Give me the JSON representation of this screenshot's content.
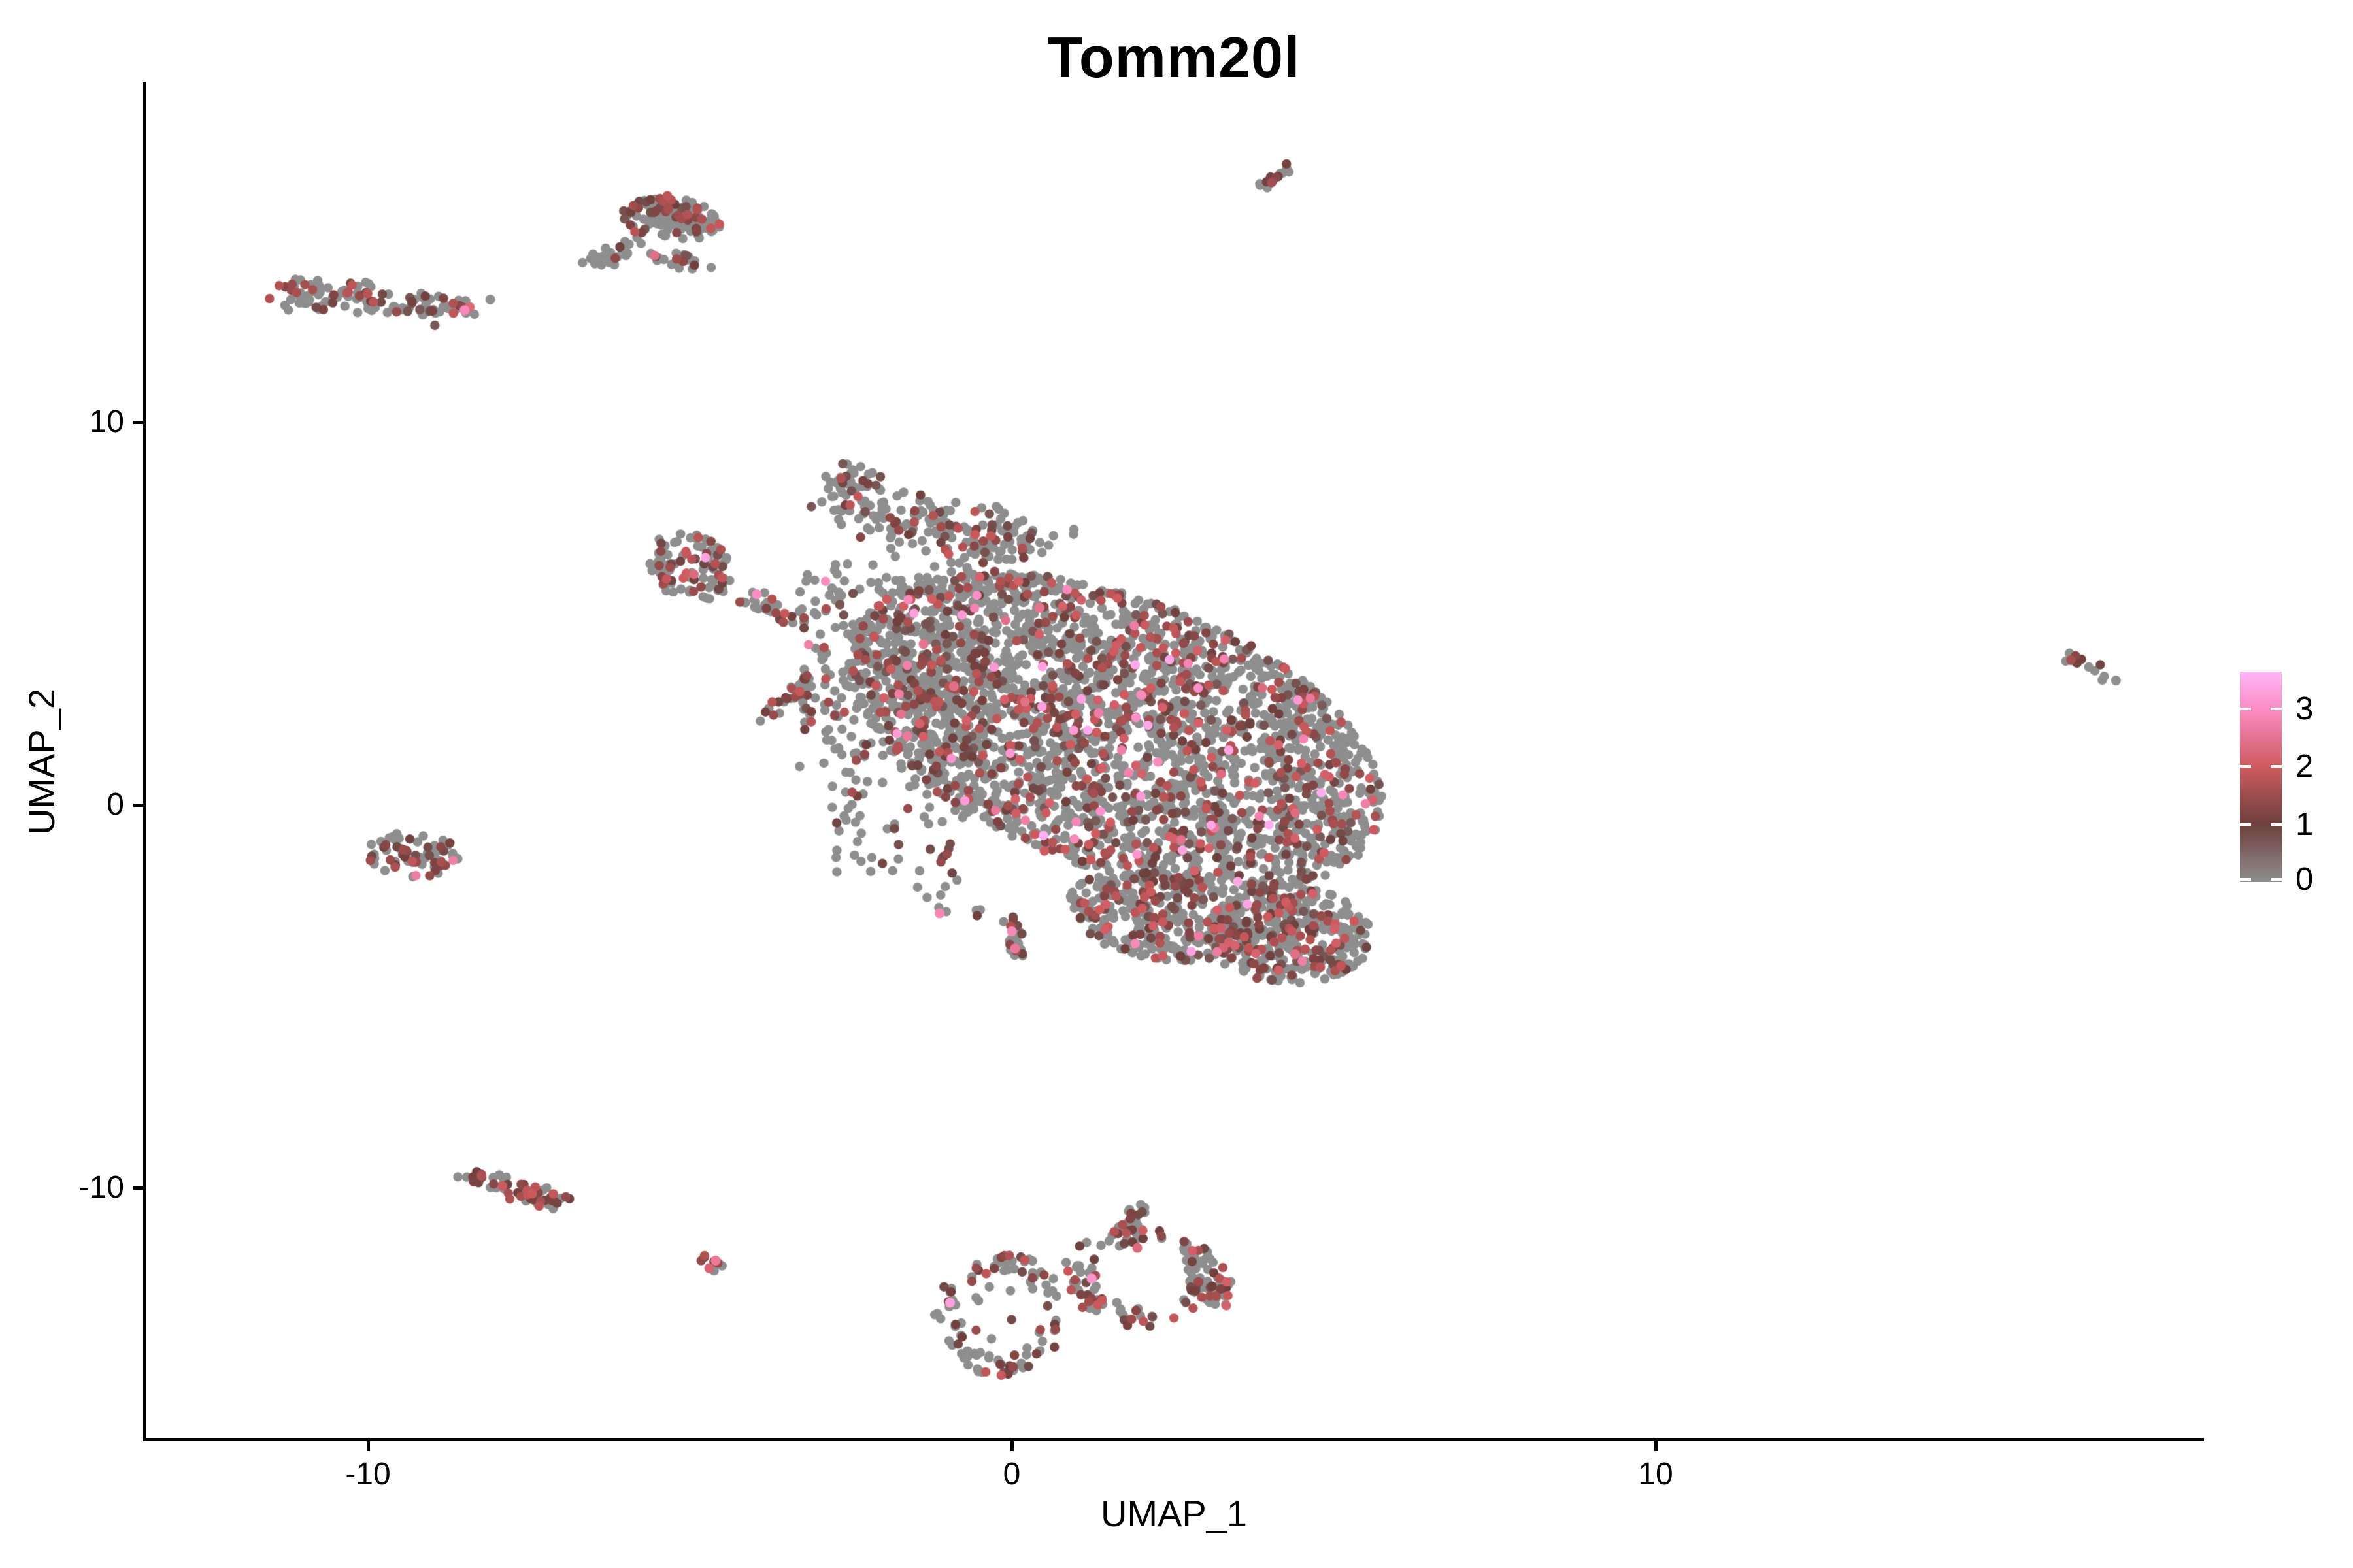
{
  "title": "Tomm20l",
  "chart_data": {
    "type": "scatter",
    "subtype": "umap-feature-expression-plot",
    "title": "Tomm20l",
    "xlabel": "UMAP_1",
    "ylabel": "UMAP_2",
    "x_ticks": {
      "values": [
        -10,
        0,
        10
      ],
      "labels": [
        "-10",
        "0",
        "10"
      ]
    },
    "y_ticks": {
      "values": [
        10,
        0,
        -10
      ],
      "labels": [
        "10",
        "0",
        "-10"
      ]
    },
    "x_range": [
      -13.5,
      18.5
    ],
    "y_range": [
      -16.6,
      18.8
    ],
    "grid": false,
    "legend": {
      "position": "right",
      "tick_values": [
        0,
        1,
        2,
        3
      ],
      "tick_labels": [
        "0",
        "1",
        "2",
        "3"
      ],
      "max_value": 3.64,
      "min_value": 0
    },
    "color_scale": {
      "stops": [
        {
          "v": 0.0,
          "c": "#8E8E8E"
        },
        {
          "v": 1.0,
          "c": "#6E403E"
        },
        {
          "v": 2.0,
          "c": "#CE5A5E"
        },
        {
          "v": 3.0,
          "c": "#FC8EC4"
        },
        {
          "v": 3.64,
          "c": "#FFB5F9"
        }
      ],
      "zero_color": "#8E8E8E"
    },
    "point_count_approx": 4950,
    "point_radius_px": 7.2,
    "seed": 20,
    "clusters": [
      {
        "name": "left-band",
        "shape": "streak",
        "x1": -11.35,
        "y1": 13.45,
        "x2": -8.45,
        "y2": 12.9,
        "w": 0.4,
        "n": 125,
        "bias": 1.3,
        "ef": 0.32,
        "lo": 0.7,
        "hi": 1.9,
        "hot": 0.005
      },
      {
        "name": "topleft-island-core",
        "shape": "ellipse",
        "cx": -5.3,
        "cy": 15.3,
        "rx": 0.8,
        "ry": 0.6,
        "rot": -15,
        "n": 95,
        "ef": 0.22,
        "lo": 0.7,
        "hi": 1.9,
        "hot": 0
      },
      {
        "name": "topleft-island-ridge",
        "shape": "streak",
        "x1": -5.8,
        "y1": 15.65,
        "x2": -4.55,
        "y2": 15.1,
        "w": 0.25,
        "n": 55,
        "ef": 0.33,
        "lo": 0.8,
        "hi": 2.0,
        "hot": 0
      },
      {
        "name": "topleft-island-tail",
        "shape": "streak",
        "x1": -5.9,
        "y1": 14.7,
        "x2": -6.6,
        "y2": 14.05,
        "w": 0.22,
        "n": 26,
        "ef": 0.15,
        "lo": 0.7,
        "hi": 1.5,
        "hot": 0
      },
      {
        "name": "topleft-island-foot",
        "shape": "streak",
        "x1": -5.55,
        "y1": 14.5,
        "x2": -4.85,
        "y2": 13.95,
        "w": 0.3,
        "n": 22,
        "ef": 0.15,
        "lo": 0.7,
        "hi": 1.5,
        "hot": 0
      },
      {
        "name": "top-streak",
        "shape": "streak",
        "x1": 3.87,
        "y1": 16.1,
        "x2": 4.55,
        "y2": 16.95,
        "w": 0.1,
        "n": 14,
        "ef": 0.45,
        "lo": 1.0,
        "hi": 1.7,
        "hot": 0
      },
      {
        "name": "far-right-streak",
        "shape": "streak",
        "x1": 16.45,
        "y1": 3.9,
        "x2": 17.0,
        "y2": 3.3,
        "w": 0.14,
        "n": 14,
        "ef": 0.5,
        "lo": 0.9,
        "hi": 1.6,
        "hot": 0
      },
      {
        "name": "left-middle-blob",
        "shape": "ellipse",
        "cx": -9.3,
        "cy": -1.3,
        "rx": 0.72,
        "ry": 0.58,
        "rot": -10,
        "n": 74,
        "ef": 0.38,
        "lo": 0.8,
        "hi": 1.9,
        "hot": 0.01
      },
      {
        "name": "bottom-left-streak",
        "shape": "streak",
        "x1": -8.5,
        "y1": -9.65,
        "x2": -7.0,
        "y2": -10.35,
        "w": 0.26,
        "n": 64,
        "ef": 0.5,
        "lo": 0.9,
        "hi": 2.0,
        "hot": 0
      },
      {
        "name": "tiny-pink-cluster",
        "shape": "ellipse",
        "cx": -4.66,
        "cy": -12.0,
        "rx": 0.2,
        "ry": 0.3,
        "rot": 0,
        "n": 9,
        "ef": 0.55,
        "lo": 1.0,
        "hi": 1.8,
        "hot": 0
      },
      {
        "name": "bottom-ring-left",
        "shape": "ring",
        "cx": -0.2,
        "cy": -13.3,
        "rx": 1.0,
        "ry": 1.6,
        "thk": 0.32,
        "n": 100,
        "ef": 0.35,
        "lo": 0.8,
        "hi": 2.0,
        "hot": 0
      },
      {
        "name": "bottom-ring-left-inner",
        "shape": "ellipse",
        "cx": -0.2,
        "cy": -13.2,
        "rx": 0.55,
        "ry": 0.9,
        "rot": 0,
        "n": 7,
        "ef": 0.2,
        "lo": 0.8,
        "hi": 1.5,
        "hot": 0
      },
      {
        "name": "bottom-ring-right",
        "shape": "ring",
        "cx": 2.05,
        "cy": -12.3,
        "rx": 1.2,
        "ry": 1.4,
        "thk": 0.38,
        "n": 120,
        "ef": 0.38,
        "lo": 0.8,
        "hi": 2.1,
        "hot": 0
      },
      {
        "name": "bottom-ring-arm",
        "shape": "streak",
        "x1": 1.8,
        "y1": -11.3,
        "x2": 2.05,
        "y2": -10.45,
        "w": 0.22,
        "n": 24,
        "ef": 0.35,
        "lo": 0.8,
        "hi": 1.8,
        "hot": 0
      },
      {
        "name": "bottom-ring-bulge",
        "shape": "streak",
        "x1": 2.9,
        "y1": -12.2,
        "x2": 3.3,
        "y2": -13.0,
        "w": 0.3,
        "n": 30,
        "ef": 0.4,
        "lo": 0.9,
        "hi": 2.2,
        "hot": 0
      },
      {
        "name": "main-left-island",
        "shape": "ellipse",
        "cx": -5.0,
        "cy": 6.2,
        "rx": 0.65,
        "ry": 0.95,
        "rot": 10,
        "n": 115,
        "ef": 0.3,
        "lo": 0.8,
        "hi": 2.1,
        "hot": 0.01
      },
      {
        "name": "main-island-tail",
        "shape": "streak",
        "x1": -4.2,
        "y1": 5.5,
        "x2": -3.4,
        "y2": 4.8,
        "w": 0.25,
        "n": 30,
        "ef": 0.35,
        "lo": 0.8,
        "hi": 2.0,
        "hot": 0
      },
      {
        "name": "main-small-arm",
        "shape": "streak",
        "x1": -3.95,
        "y1": 2.1,
        "x2": -3.1,
        "y2": 3.35,
        "w": 0.17,
        "n": 26,
        "ef": 0.35,
        "lo": 0.9,
        "hi": 2.0,
        "hot": 0
      },
      {
        "name": "main-top-wedge",
        "shape": "streak",
        "x1": -2.7,
        "y1": 8.0,
        "x2": 0.45,
        "y2": 6.55,
        "w": 0.8,
        "n": 195,
        "ef": 0.25,
        "lo": 0.7,
        "hi": 2.0,
        "hot": 0.01
      },
      {
        "name": "main-wedge-tip",
        "shape": "ellipse",
        "cx": -2.55,
        "cy": 8.55,
        "rx": 0.45,
        "ry": 0.4,
        "rot": 0,
        "n": 24,
        "ef": 0.2,
        "lo": 0.7,
        "hi": 1.6,
        "hot": 0
      },
      {
        "name": "main-midleft-sparse",
        "shape": "rect",
        "x1": -3.3,
        "y1": 1.0,
        "x2": -0.4,
        "y2": 6.3,
        "n": 285,
        "ef": 0.22,
        "lo": 0.7,
        "hi": 1.9,
        "hot": 0.01
      },
      {
        "name": "main-lowleft-strip",
        "shape": "rect",
        "x1": -2.9,
        "y1": -1.8,
        "x2": -0.7,
        "y2": 1.0,
        "n": 60,
        "ef": 0.25,
        "lo": 0.7,
        "hi": 1.9,
        "hot": 0
      },
      {
        "name": "main-stragglers",
        "shape": "rect",
        "x1": -1.5,
        "y1": -2.9,
        "x2": -0.3,
        "y2": -1.8,
        "n": 10,
        "ef": 0.3,
        "lo": 0.8,
        "hi": 2.0,
        "hot": 0
      },
      {
        "name": "main-dense-core",
        "shape": "ellipse",
        "cx": 1.6,
        "cy": 1.9,
        "rx": 5.0,
        "ry": 3.1,
        "rot": -45,
        "n": 2750,
        "ef": 0.27,
        "lo": 0.65,
        "hi": 2.15,
        "hot": 0.02
      },
      {
        "name": "main-bottom-bridge",
        "shape": "ellipse",
        "cx": 2.3,
        "cy": -2.9,
        "rx": 1.5,
        "ry": 1.1,
        "rot": -25,
        "n": 330,
        "ef": 0.3,
        "lo": 0.7,
        "hi": 2.1,
        "hot": 0.01
      },
      {
        "name": "main-lowright-lobe",
        "shape": "ellipse",
        "cx": 4.3,
        "cy": -3.4,
        "rx": 1.3,
        "ry": 1.25,
        "rot": -30,
        "n": 390,
        "ef": 0.3,
        "lo": 0.7,
        "hi": 2.2,
        "hot": 0.01
      },
      {
        "name": "main-down-spike",
        "shape": "streak",
        "x1": 0.0,
        "y1": -2.9,
        "x2": 0.1,
        "y2": -3.9,
        "w": 0.15,
        "n": 22,
        "ef": 0.3,
        "lo": 0.8,
        "hi": 1.8,
        "hot": 0
      }
    ],
    "highlight_points": [
      {
        "x": -8.5,
        "y": 12.92,
        "v": 2.9
      },
      {
        "x": -8.42,
        "y": 13.0,
        "v": 2.3
      },
      {
        "x": -8.1,
        "y": 13.2,
        "v": 0
      },
      {
        "x": -5.55,
        "y": 14.35,
        "v": 2.4
      },
      {
        "x": 17.15,
        "y": 3.25,
        "v": 0
      },
      {
        "x": -4.6,
        "y": -11.9,
        "v": 2.6
      },
      {
        "x": -4.7,
        "y": -12.1,
        "v": 2.2
      },
      {
        "x": -0.96,
        "y": -13.0,
        "v": 3.3
      },
      {
        "x": 1.24,
        "y": -12.37,
        "v": 3.1
      },
      {
        "x": 1.95,
        "y": -11.57,
        "v": 2.3
      },
      {
        "x": -3.96,
        "y": 5.5,
        "v": 3.0
      },
      {
        "x": -1.37,
        "y": 4.2,
        "v": 2.5
      },
      {
        "x": 0.43,
        "y": 5.15,
        "v": 2.5
      },
      {
        "x": -1.62,
        "y": 1.8,
        "v": 2.6
      },
      {
        "x": -0.9,
        "y": 3.1,
        "v": 2.4
      },
      {
        "x": 1.35,
        "y": 2.4,
        "v": 2.7
      },
      {
        "x": 3.15,
        "y": -0.6,
        "v": 2.6
      },
      {
        "x": -1.12,
        "y": -2.83,
        "v": 2.85
      },
      {
        "x": 0.05,
        "y": -3.75,
        "v": 2.6
      },
      {
        "x": 0.0,
        "y": -3.3,
        "v": 2.9
      },
      {
        "x": 4.4,
        "y": -3.9,
        "v": 2.4
      }
    ]
  }
}
